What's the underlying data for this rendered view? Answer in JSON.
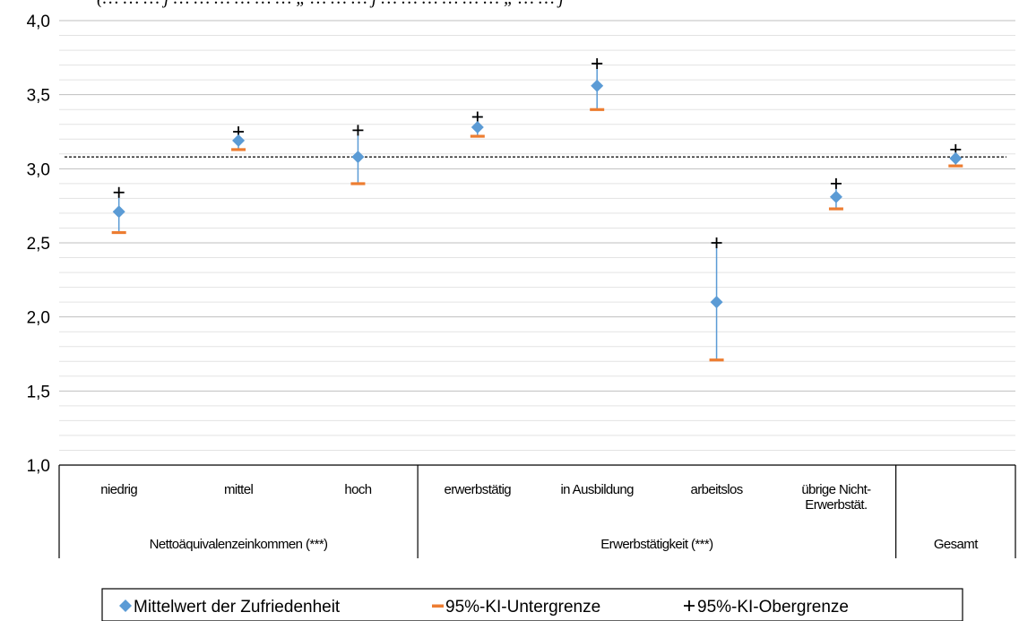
{
  "chart_data": {
    "type": "scatter",
    "title": "",
    "clipped_top_text": "(… … … j … … … … … … „ … … … j … … … … … … „ … … j",
    "y_axis": {
      "min": 1.0,
      "max": 4.0,
      "major_step": 0.5,
      "minor_step": 0.1,
      "tick_labels": [
        "1,0",
        "1,5",
        "2,0",
        "2,5",
        "3,0",
        "3,5",
        "4,0"
      ]
    },
    "categories": [
      "niedrig",
      "mittel",
      "hoch",
      "erwerbstätig",
      "in Ausbildung",
      "arbeitslos",
      "übrige Nicht-Erwerbstät.",
      "Gesamt"
    ],
    "category_lines": [
      [
        "niedrig"
      ],
      [
        "mittel"
      ],
      [
        "hoch"
      ],
      [
        "erwerbstätig"
      ],
      [
        "in Ausbildung"
      ],
      [
        "arbeitslos"
      ],
      [
        "übrige Nicht-",
        "Erwerbstät."
      ],
      []
    ],
    "groups": [
      {
        "label": "Nettoäquivalenzeinkommen (***)",
        "start": 0,
        "count": 3
      },
      {
        "label": "Erwerbstätigkeit (***)",
        "start": 3,
        "count": 4
      },
      {
        "label": "Gesamt",
        "start": 7,
        "count": 1
      }
    ],
    "series": [
      {
        "name": "Mittelwert der Zufriedenheit",
        "marker": "diamond",
        "color": "#5B9BD5",
        "values": [
          2.71,
          3.19,
          3.08,
          3.28,
          3.56,
          2.1,
          2.81,
          3.07
        ]
      },
      {
        "name": "95%-KI-Untergrenze",
        "marker": "dash",
        "color": "#ED7D31",
        "values": [
          2.57,
          3.13,
          2.9,
          3.22,
          3.4,
          1.71,
          2.73,
          3.02
        ]
      },
      {
        "name": "95%-KI-Obergrenze",
        "marker": "plus",
        "color": "#000000",
        "values": [
          2.84,
          3.25,
          3.26,
          3.35,
          3.71,
          2.5,
          2.9,
          3.13
        ]
      }
    ],
    "reference_line": {
      "value": 3.08,
      "style": "dashed",
      "color": "#000000"
    },
    "error_bar_color": "#5B9BD5",
    "grid": true,
    "legend_position": "bottom"
  }
}
